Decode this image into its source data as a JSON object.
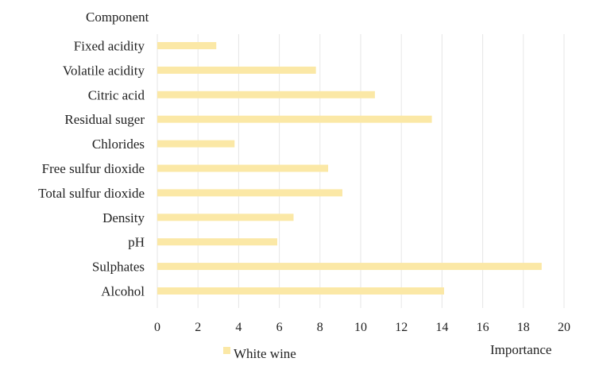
{
  "chart_data": {
    "type": "bar",
    "orientation": "horizontal",
    "y_axis_title": "Component",
    "x_axis_title": "Importance",
    "categories": [
      "Fixed acidity",
      "Volatile acidity",
      "Citric acid",
      "Residual suger",
      "Chlorides",
      "Free sulfur dioxide",
      "Total sulfur dioxide",
      "Density",
      "pH",
      "Sulphates",
      "Alcohol"
    ],
    "series": [
      {
        "name": "White wine",
        "color": "#fbe8a6",
        "values": [
          2.9,
          7.8,
          10.7,
          13.5,
          3.8,
          8.4,
          9.1,
          6.7,
          5.9,
          18.9,
          14.1
        ]
      }
    ],
    "xlim": [
      0,
      20
    ],
    "x_ticks": [
      "0",
      "2",
      "4",
      "6",
      "8",
      "10",
      "12",
      "14",
      "16",
      "18",
      "20"
    ],
    "grid": "vertical",
    "gridline_color": "#e6e6e6",
    "legend": "bottom-left"
  }
}
